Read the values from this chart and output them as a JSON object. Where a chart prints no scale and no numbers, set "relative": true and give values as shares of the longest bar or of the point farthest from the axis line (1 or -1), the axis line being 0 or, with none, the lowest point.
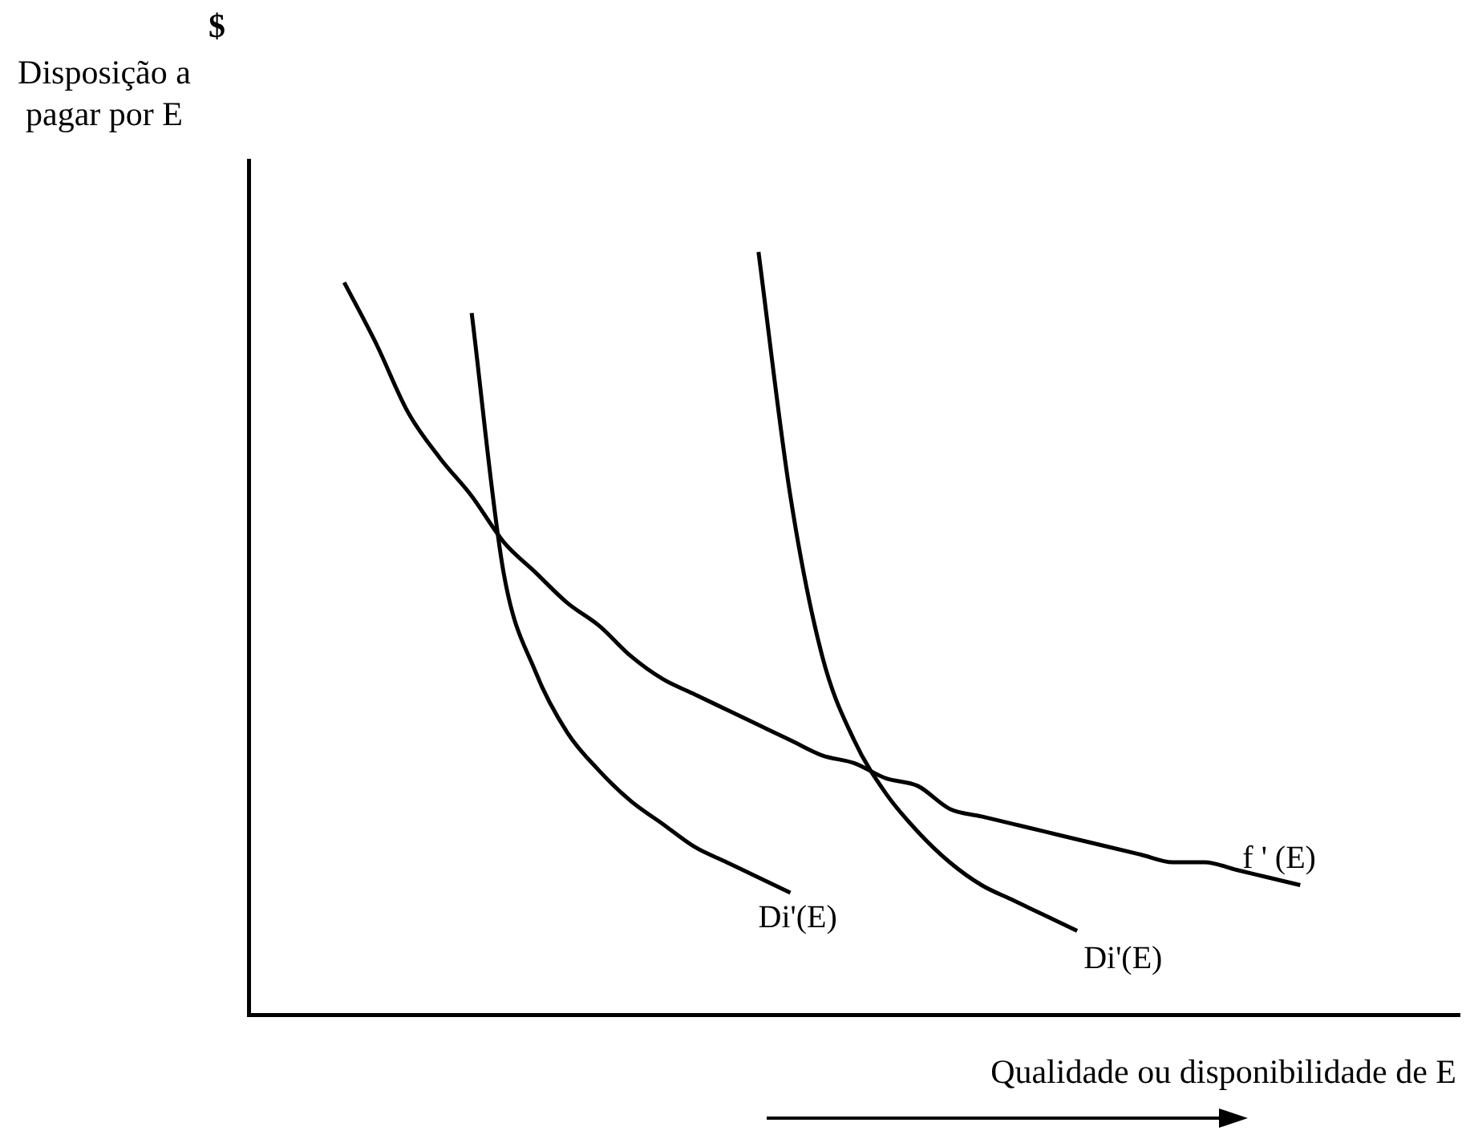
{
  "chart_data": {
    "type": "line",
    "relative": true,
    "xlabel": "Qualidade ou disponibilidade de E",
    "annotations": [
      "$",
      "Disposição a pagar por E"
    ],
    "categories": [
      null,
      null,
      null,
      null,
      null,
      null,
      null,
      null,
      null,
      null,
      null,
      null,
      null,
      null,
      null,
      null,
      null,
      null,
      null,
      null,
      null,
      null,
      null,
      null,
      null,
      null,
      null,
      null,
      null,
      null,
      null,
      null,
      null,
      null,
      null,
      null,
      null,
      null,
      null
    ],
    "marker": "none",
    "line_style": "solid",
    "legend": false,
    "series": [
      {
        "name": "Di'(E)",
        "color": "#000000",
        "values": [
          null,
          null,
          null,
          null,
          null,
          null,
          null,
          0.92,
          0.58,
          0.45,
          0.37,
          0.32,
          0.28,
          0.25,
          0.22,
          0.2,
          0.18,
          0.16,
          null,
          null,
          null,
          null,
          null,
          null,
          null,
          null,
          null,
          null,
          null,
          null,
          null,
          null,
          null,
          null,
          null,
          null,
          null,
          null,
          null
        ]
      },
      {
        "name": "Di'(E)",
        "color": "#000000",
        "values": [
          null,
          null,
          null,
          null,
          null,
          null,
          null,
          null,
          null,
          null,
          null,
          null,
          null,
          null,
          null,
          null,
          1,
          0.68,
          0.47,
          0.36,
          0.29,
          0.24,
          0.2,
          0.17,
          0.15,
          0.13,
          0.11,
          null,
          null,
          null,
          null,
          null,
          null,
          null,
          null,
          null,
          null,
          null,
          null
        ]
      },
      {
        "name": "f ' (E)",
        "color": "#000000",
        "values": [
          null,
          null,
          null,
          0.96,
          0.88,
          0.79,
          0.73,
          0.68,
          0.62,
          0.58,
          0.54,
          0.51,
          0.47,
          0.44,
          0.42,
          0.4,
          0.38,
          0.36,
          0.34,
          0.33,
          0.31,
          0.3,
          0.27,
          0.26,
          0.25,
          0.24,
          0.23,
          0.22,
          0.21,
          0.2,
          0.2,
          0.19,
          0.18,
          0.17,
          null,
          null,
          null,
          null,
          null
        ]
      }
    ]
  }
}
